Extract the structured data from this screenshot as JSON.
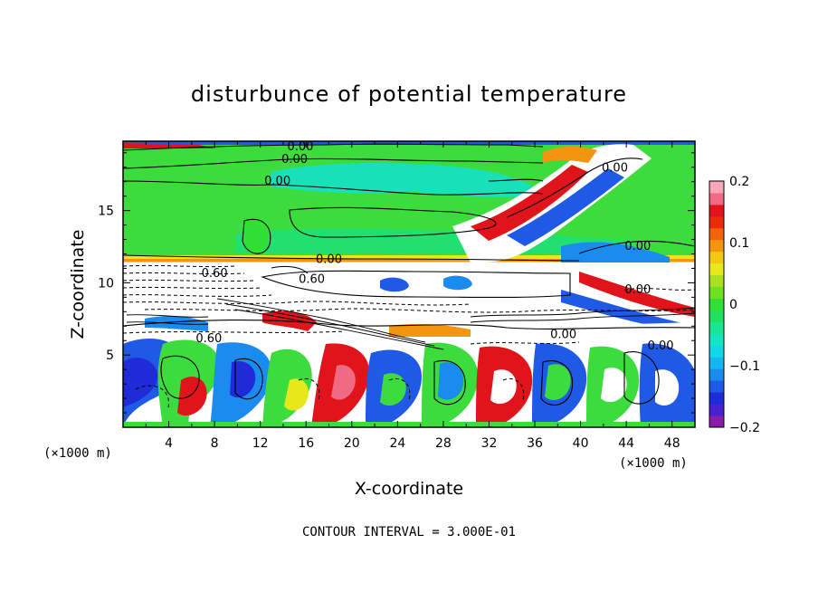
{
  "chart_data": {
    "type": "heatmap",
    "title": "disturbunce of potential temperature",
    "xlabel": "X-coordinate",
    "ylabel": "Z-coordinate",
    "x_unit": "(×1000 m)",
    "z_unit": "(×1000 m)",
    "xlim": [
      0,
      50
    ],
    "ylim": [
      0,
      19.8
    ],
    "x_ticks": [
      4,
      8,
      12,
      16,
      20,
      24,
      28,
      32,
      36,
      40,
      44,
      48
    ],
    "y_ticks": [
      5,
      10,
      15
    ],
    "colorbar": {
      "min": -0.2,
      "max": 0.2,
      "ticks": [
        "0.2",
        "0.1",
        "0",
        "−0.1",
        "−0.2"
      ],
      "tick_values": [
        0.2,
        0.1,
        0,
        -0.1,
        -0.2
      ],
      "colors": [
        "#8a1ea8",
        "#4a1fd0",
        "#1f2bd8",
        "#1e5ae6",
        "#1a8cf0",
        "#14b6f2",
        "#10d8e8",
        "#14e6c4",
        "#18e690",
        "#20e060",
        "#30e034",
        "#6ee020",
        "#aae020",
        "#e6e81c",
        "#f2c814",
        "#f29610",
        "#f0640c",
        "#ec2a0a",
        "#e0141a",
        "#f06a84",
        "#f8a6b8"
      ]
    },
    "contour_labels": [
      {
        "text": "0.00",
        "x": 15.5,
        "z": 19.5
      },
      {
        "text": "0.00",
        "x": 15.0,
        "z": 18.6
      },
      {
        "text": "0.00",
        "x": 13.5,
        "z": 17.1
      },
      {
        "text": "0.00",
        "x": 18.0,
        "z": 11.7
      },
      {
        "text": "0.00",
        "x": 45.0,
        "z": 12.6
      },
      {
        "text": "0.60",
        "x": 8.0,
        "z": 10.7
      },
      {
        "text": "0.60",
        "x": 16.5,
        "z": 10.3
      },
      {
        "text": "0.60",
        "x": 7.5,
        "z": 6.2
      },
      {
        "text": "0.00",
        "x": 38.5,
        "z": 6.5
      },
      {
        "text": "0.00",
        "x": 45.0,
        "z": 9.6
      },
      {
        "text": "0.00",
        "x": 47.0,
        "z": 5.7
      },
      {
        "text": "0.00",
        "x": 43.0,
        "z": 18.0
      }
    ],
    "contour_interval_text": "CONTOUR INTERVAL = 3.000E-01"
  }
}
